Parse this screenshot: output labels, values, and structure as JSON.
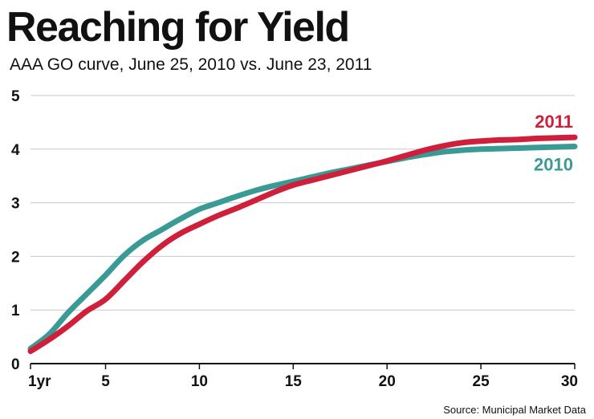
{
  "title": "Reaching for Yield",
  "subtitle": "AAA GO curve, June 25, 2010 vs.  June 23, 2011",
  "source": "Source: Municipal Market Data",
  "chart_data": {
    "type": "line",
    "title": "Reaching for Yield",
    "subtitle": "AAA GO curve, June 25, 2010 vs.  June 23, 2011",
    "xlabel": "",
    "ylabel": "",
    "xlim": [
      1,
      30
    ],
    "ylim": [
      0,
      5
    ],
    "x_ticks": [
      1,
      5,
      10,
      15,
      20,
      25,
      30
    ],
    "x_tick_labels": [
      "1yr",
      "5",
      "10",
      "15",
      "20",
      "25",
      "30"
    ],
    "y_ticks": [
      0,
      1,
      2,
      3,
      4,
      5
    ],
    "y_tick_labels": [
      "0",
      "1",
      "2",
      "3",
      "4",
      "5"
    ],
    "grid": "horizontal",
    "series": [
      {
        "name": "2010",
        "color": "#3a9a95",
        "x": [
          1,
          2,
          3,
          4,
          5,
          6,
          7,
          8,
          9,
          10,
          11,
          12,
          13,
          14,
          15,
          16,
          17,
          18,
          19,
          20,
          21,
          22,
          23,
          24,
          25,
          26,
          27,
          28,
          29,
          30
        ],
        "values": [
          0.28,
          0.55,
          0.95,
          1.3,
          1.65,
          2.02,
          2.3,
          2.5,
          2.7,
          2.88,
          3.0,
          3.12,
          3.23,
          3.32,
          3.4,
          3.48,
          3.56,
          3.63,
          3.7,
          3.77,
          3.84,
          3.9,
          3.95,
          3.98,
          4.0,
          4.01,
          4.02,
          4.03,
          4.04,
          4.05
        ]
      },
      {
        "name": "2011",
        "color": "#cf1f3a",
        "x": [
          1,
          2,
          3,
          4,
          5,
          6,
          7,
          8,
          9,
          10,
          11,
          12,
          13,
          14,
          15,
          16,
          17,
          18,
          19,
          20,
          21,
          22,
          23,
          24,
          25,
          26,
          27,
          28,
          29,
          30
        ],
        "values": [
          0.23,
          0.45,
          0.7,
          0.98,
          1.2,
          1.55,
          1.9,
          2.2,
          2.43,
          2.6,
          2.76,
          2.9,
          3.05,
          3.2,
          3.33,
          3.42,
          3.51,
          3.6,
          3.69,
          3.78,
          3.88,
          3.98,
          4.06,
          4.12,
          4.15,
          4.17,
          4.18,
          4.2,
          4.21,
          4.22
        ]
      }
    ]
  }
}
